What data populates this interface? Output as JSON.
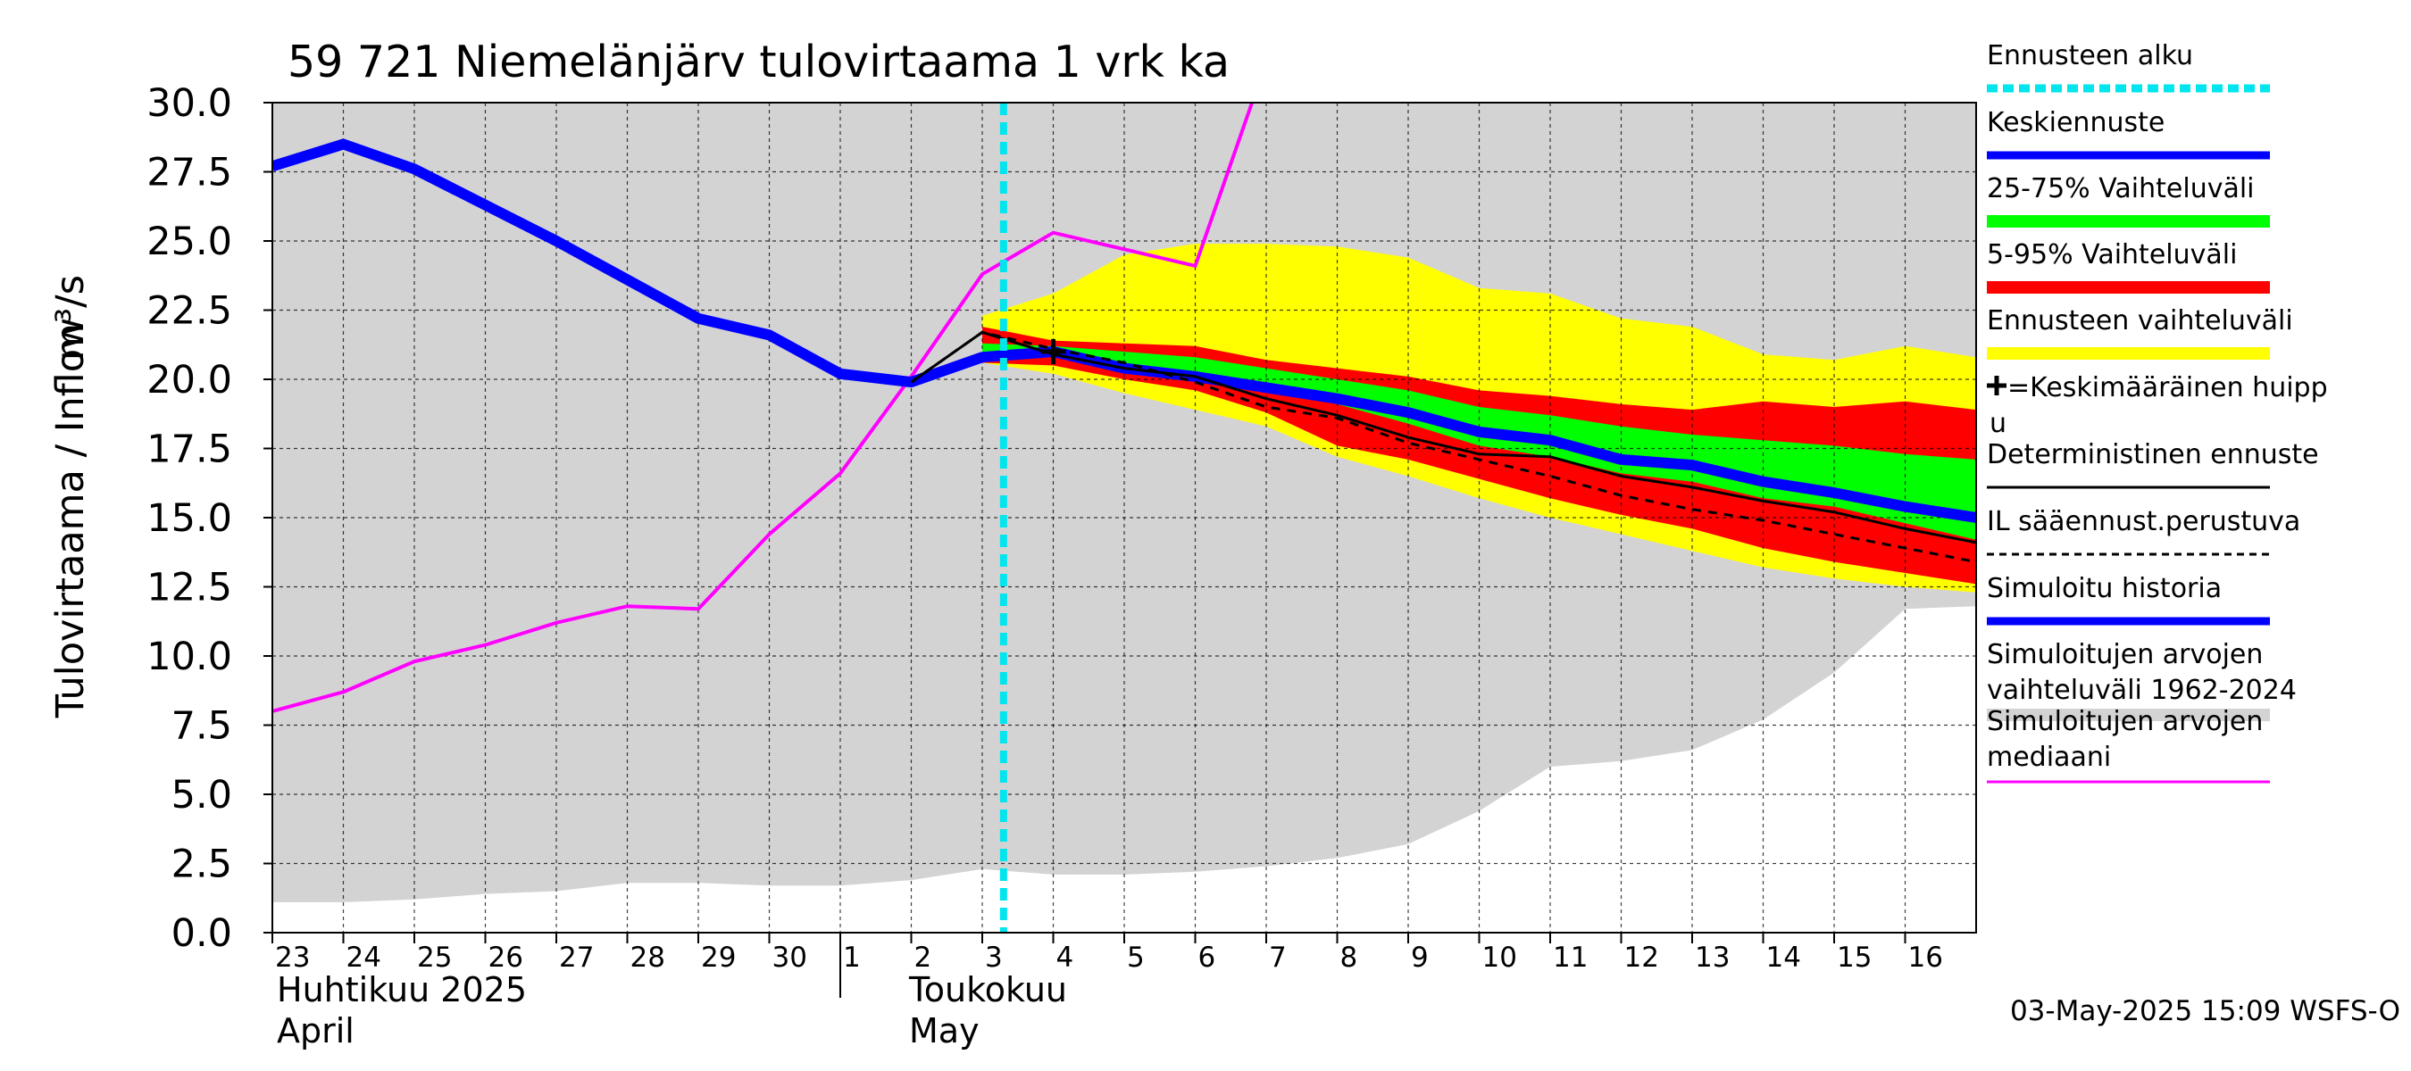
{
  "chart_data": {
    "type": "line",
    "title": "59 721 Niemelänjärv tulovirtaama 1 vrk ka",
    "ylabel_left": "Tulovirtaama / Inflow",
    "ylabel_unit": "m³/s",
    "ylim": [
      0,
      30
    ],
    "y_ticks": [
      "0.0",
      "2.5",
      "5.0",
      "7.5",
      "10.0",
      "12.5",
      "15.0",
      "17.5",
      "20.0",
      "22.5",
      "25.0",
      "27.5",
      "30.0"
    ],
    "x_days": [
      "23",
      "24",
      "25",
      "26",
      "27",
      "28",
      "29",
      "30",
      "1",
      "2",
      "3",
      "4",
      "5",
      "6",
      "7",
      "8",
      "9",
      "10",
      "11",
      "12",
      "13",
      "14",
      "15",
      "16"
    ],
    "x_range": [
      0,
      24
    ],
    "months": [
      {
        "fi": "Huhtikuu  2025",
        "en": "April",
        "start_day": 0
      },
      {
        "fi": "Toukokuu",
        "en": "May",
        "start_day": 9
      }
    ],
    "forecast_start_x": 10.3,
    "sim_range_1962_2024": {
      "x": [
        0,
        1,
        2,
        3,
        4,
        5,
        6,
        7,
        8,
        9,
        10,
        11,
        12,
        13,
        14,
        15,
        16,
        17,
        18,
        19,
        20,
        21,
        22,
        23,
        24
      ],
      "low": [
        1.1,
        1.1,
        1.2,
        1.4,
        1.5,
        1.8,
        1.8,
        1.7,
        1.7,
        1.9,
        2.3,
        2.1,
        2.1,
        2.2,
        2.4,
        2.7,
        3.2,
        4.4,
        6.0,
        6.2,
        6.6,
        7.7,
        9.4,
        11.7,
        11.8
      ],
      "high": [
        30,
        30,
        30,
        30,
        30,
        30,
        30,
        30,
        30,
        30,
        30,
        30,
        30,
        30,
        30,
        30,
        30,
        30,
        30,
        30,
        30,
        30,
        30,
        30,
        30
      ]
    },
    "forecast_range": {
      "x": [
        10,
        11,
        12,
        13,
        14,
        15,
        16,
        17,
        18,
        19,
        20,
        21,
        22,
        23,
        24
      ],
      "low": [
        20.6,
        20.2,
        19.5,
        18.9,
        18.3,
        17.2,
        16.5,
        15.7,
        15.0,
        14.4,
        13.8,
        13.2,
        12.8,
        12.5,
        12.3
      ],
      "high": [
        22.3,
        23.1,
        24.5,
        24.9,
        24.9,
        24.8,
        24.4,
        23.3,
        23.1,
        22.2,
        21.9,
        20.9,
        20.7,
        21.2,
        20.8
      ]
    },
    "range_5_95": {
      "x": [
        10,
        11,
        12,
        13,
        14,
        15,
        16,
        17,
        18,
        19,
        20,
        21,
        22,
        23,
        24
      ],
      "low": [
        20.6,
        20.5,
        20.0,
        19.6,
        18.8,
        17.6,
        17.1,
        16.4,
        15.7,
        15.1,
        14.6,
        13.9,
        13.4,
        13.0,
        12.6
      ],
      "high": [
        21.9,
        21.4,
        21.3,
        21.2,
        20.7,
        20.4,
        20.1,
        19.6,
        19.4,
        19.1,
        18.9,
        19.2,
        19.0,
        19.2,
        18.9
      ]
    },
    "range_25_75": {
      "x": [
        10,
        11,
        12,
        13,
        14,
        15,
        16,
        17,
        18,
        19,
        20,
        21,
        22,
        23,
        24
      ],
      "low": [
        20.9,
        20.8,
        20.5,
        20.3,
        19.7,
        19.1,
        18.4,
        17.6,
        17.2,
        16.6,
        16.3,
        15.7,
        15.4,
        14.8,
        14.2
      ],
      "high": [
        21.3,
        21.2,
        21.0,
        20.8,
        20.4,
        20.0,
        19.6,
        19.0,
        18.7,
        18.3,
        18.0,
        17.8,
        17.6,
        17.3,
        17.1
      ]
    },
    "series": [
      {
        "name": "Simuloitu historia / Keskiennuste",
        "color": "#0000ff",
        "x": [
          0,
          1,
          2,
          3,
          4,
          5,
          6,
          7,
          8,
          9,
          10,
          11,
          12,
          13,
          14,
          15,
          16,
          17,
          18,
          19,
          20,
          21,
          22,
          23,
          24
        ],
        "values": [
          27.7,
          28.5,
          27.6,
          26.3,
          25.0,
          23.6,
          22.2,
          21.6,
          20.2,
          19.9,
          20.8,
          21.0,
          20.4,
          20.1,
          19.7,
          19.3,
          18.8,
          18.1,
          17.8,
          17.1,
          16.9,
          16.3,
          15.9,
          15.4,
          15.0
        ]
      },
      {
        "name": "Deterministinen ennuste",
        "color": "#000000",
        "x": [
          9,
          10,
          11,
          12,
          13,
          14,
          15,
          16,
          17,
          18,
          19,
          20,
          21,
          22,
          23,
          24
        ],
        "values": [
          19.9,
          21.7,
          20.9,
          20.4,
          20.1,
          19.3,
          18.7,
          17.9,
          17.3,
          17.2,
          16.5,
          16.1,
          15.6,
          15.2,
          14.6,
          14.1
        ]
      },
      {
        "name": "IL sääennust.perustuva",
        "color": "#000000",
        "dash": true,
        "x": [
          9,
          10,
          11,
          12,
          13,
          14,
          15,
          16,
          17,
          18,
          19,
          20,
          21,
          22,
          23,
          24
        ],
        "values": [
          19.9,
          21.7,
          21.1,
          20.6,
          19.9,
          19.0,
          18.6,
          17.7,
          17.1,
          16.5,
          15.8,
          15.3,
          14.9,
          14.4,
          13.9,
          13.4
        ]
      },
      {
        "name": "Simuloitujen arvojen mediaani",
        "color": "#ff00ff",
        "x": [
          0,
          1,
          2,
          3,
          4,
          5,
          6,
          7,
          8,
          9,
          10,
          11,
          12,
          13,
          13.8
        ],
        "values": [
          8.0,
          8.7,
          9.8,
          10.4,
          11.2,
          11.8,
          11.7,
          14.4,
          16.6,
          20.1,
          23.8,
          25.3,
          24.7,
          24.1,
          30.0
        ]
      }
    ],
    "peak_marker": {
      "x": 11,
      "y": 21.0
    },
    "legend": [
      {
        "label": "Ennusteen alku",
        "color": "#00e5ee",
        "style": "dotted"
      },
      {
        "label": "Keskiennuste",
        "color": "#0000ff",
        "style": "thick"
      },
      {
        "label": "25-75% Vaihteluväli",
        "color": "#00ff00",
        "style": "band"
      },
      {
        "label": "5-95% Vaihteluväli",
        "color": "#ff0000",
        "style": "band"
      },
      {
        "label": "Ennusteen vaihteluväli",
        "color": "#ffff00",
        "style": "band"
      },
      {
        "label": "=Keskimääräinen huipp",
        "label2": "u",
        "color": "#000000",
        "style": "plus"
      },
      {
        "label": "Deterministinen ennuste",
        "color": "#000000",
        "style": "thin"
      },
      {
        "label": "IL sääennust.perustuva",
        "color": "#000000",
        "style": "dashed"
      },
      {
        "label": "Simuloitu historia",
        "color": "#0000ff",
        "style": "thick"
      },
      {
        "label": "Simuloitujen arvojen",
        "label2": "vaihteluväli 1962-2024",
        "color": "#d3d3d3",
        "style": "band"
      },
      {
        "label": "Simuloitujen arvojen",
        "label2": "mediaani",
        "color": "#ff00ff",
        "style": "thin"
      }
    ],
    "timestamp": "03-May-2025 15:09 WSFS-O"
  }
}
